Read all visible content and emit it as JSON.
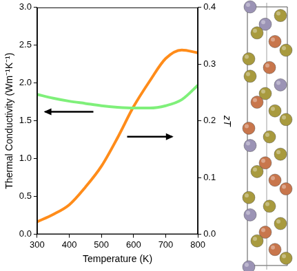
{
  "chart_data": {
    "type": "line",
    "x_label": "Temperature (K)",
    "y_label": "Thermal Conductivity (Wm⁻¹K⁻¹)",
    "y2_label": "zT",
    "x": [
      300,
      350,
      400,
      450,
      500,
      550,
      600,
      650,
      700,
      750,
      800
    ],
    "series": [
      {
        "color": "#7ff07a",
        "axis": "y",
        "values": [
          1.85,
          1.8,
          1.76,
          1.73,
          1.7,
          1.68,
          1.67,
          1.67,
          1.7,
          1.78,
          1.97
        ]
      },
      {
        "color": "#ff8c1a",
        "axis": "y2",
        "values": [
          0.022,
          0.035,
          0.052,
          0.083,
          0.12,
          0.17,
          0.225,
          0.27,
          0.31,
          0.325,
          0.32
        ]
      }
    ],
    "xlim": [
      300,
      800
    ],
    "xticks": [
      300,
      400,
      500,
      600,
      700,
      800
    ],
    "ylim": [
      0,
      3
    ],
    "yticks": [
      {
        "value": 0,
        "label": "0.0"
      },
      0.5,
      {
        "value": 1,
        "label": "1.0"
      },
      1.5,
      {
        "value": 2,
        "label": "2.0"
      },
      2.5,
      {
        "value": 3,
        "label": "3.0"
      }
    ],
    "y2lim": [
      0,
      0.4
    ],
    "y2ticks": [
      {
        "value": 0,
        "label": "0.0"
      },
      0.1,
      0.2,
      0.3,
      0.4
    ],
    "grid": false
  }
}
